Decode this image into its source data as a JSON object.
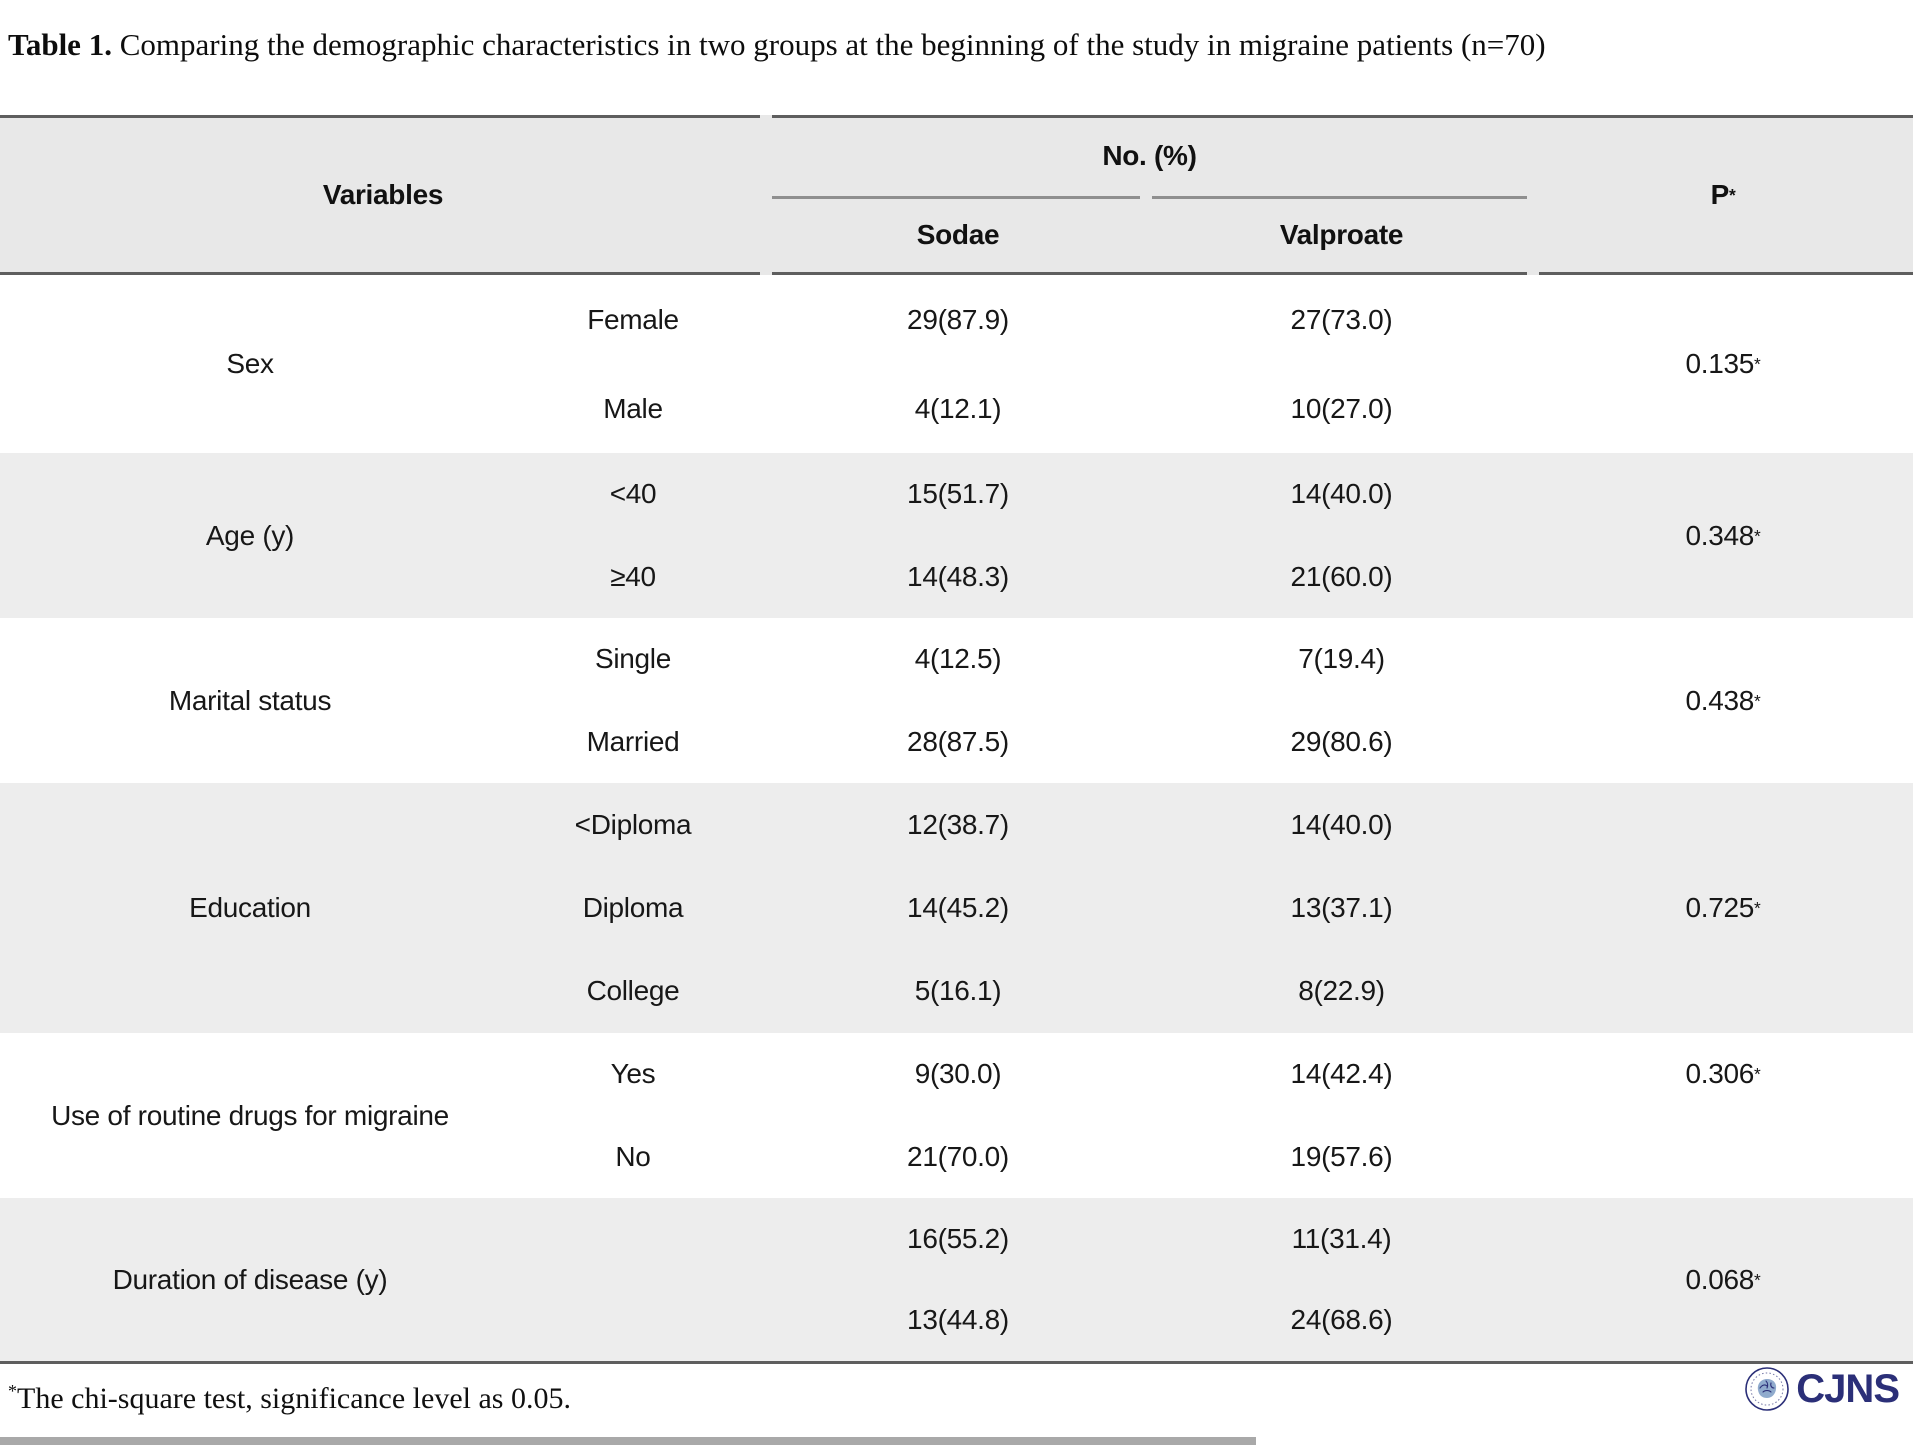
{
  "page": {
    "title_bold": "Table 1.",
    "title_rest": " Comparing the demographic characteristics in two groups at the beginning of the study in migraine patients (n=70)",
    "footnote_marker": "*",
    "footnote_text": "The chi-square test, significance level as 0.05.",
    "logo_text": "CJNS"
  },
  "colors": {
    "header_bg": "#e8e8e8",
    "stripe_bg": "#ededed",
    "border_dark": "#5e5e5e",
    "border_mid": "#8f8f8f",
    "logo_navy": "#2b2f78"
  },
  "table": {
    "header": {
      "variables_label": "Variables",
      "group_label": "No. (%)",
      "col_sodae": "Sodae",
      "col_valproate": "Valproate",
      "p_label": "P",
      "p_sup": "*"
    },
    "sections": [
      {
        "variable": "Sex",
        "p": "0.135",
        "p_sup": "*",
        "p_align": "center",
        "shaded": false,
        "rows": [
          {
            "label": "Female",
            "sodae": "29(87.9)",
            "valproate": "27(73.0)"
          },
          {
            "label": "Male",
            "sodae": "4(12.1)",
            "valproate": "10(27.0)"
          }
        ]
      },
      {
        "variable": "Age (y)",
        "p": "0.348",
        "p_sup": "*",
        "p_align": "center",
        "shaded": true,
        "rows": [
          {
            "label": "<40",
            "sodae": "15(51.7)",
            "valproate": "14(40.0)"
          },
          {
            "label": "≥40",
            "sodae": "14(48.3)",
            "valproate": "21(60.0)"
          }
        ]
      },
      {
        "variable": "Marital status",
        "p": "0.438",
        "p_sup": "*",
        "p_align": "center",
        "shaded": false,
        "rows": [
          {
            "label": "Single",
            "sodae": "4(12.5)",
            "valproate": "7(19.4)"
          },
          {
            "label": "Married",
            "sodae": "28(87.5)",
            "valproate": "29(80.6)"
          }
        ]
      },
      {
        "variable": "Education",
        "p": "0.725",
        "p_sup": "*",
        "p_align": "center",
        "shaded": true,
        "rows": [
          {
            "label": "<Diploma",
            "sodae": "12(38.7)",
            "valproate": "14(40.0)"
          },
          {
            "label": "Diploma",
            "sodae": "14(45.2)",
            "valproate": "13(37.1)"
          },
          {
            "label": "College",
            "sodae": "5(16.1)",
            "valproate": "8(22.9)"
          }
        ]
      },
      {
        "variable": "Use of routine drugs for migraine",
        "p": "0.306",
        "p_sup": "*",
        "p_align": "top",
        "shaded": false,
        "rows": [
          {
            "label": "Yes",
            "sodae": "9(30.0)",
            "valproate": "14(42.4)"
          },
          {
            "label": "No",
            "sodae": "21(70.0)",
            "valproate": "19(57.6)"
          }
        ]
      },
      {
        "variable": "Duration of disease (y)",
        "p": "0.068",
        "p_sup": "*",
        "p_align": "center",
        "shaded": true,
        "rows": [
          {
            "label": "",
            "sodae": "16(55.2)",
            "valproate": "11(31.4)"
          },
          {
            "label": "",
            "sodae": "13(44.8)",
            "valproate": "24(68.6)"
          }
        ]
      }
    ]
  }
}
